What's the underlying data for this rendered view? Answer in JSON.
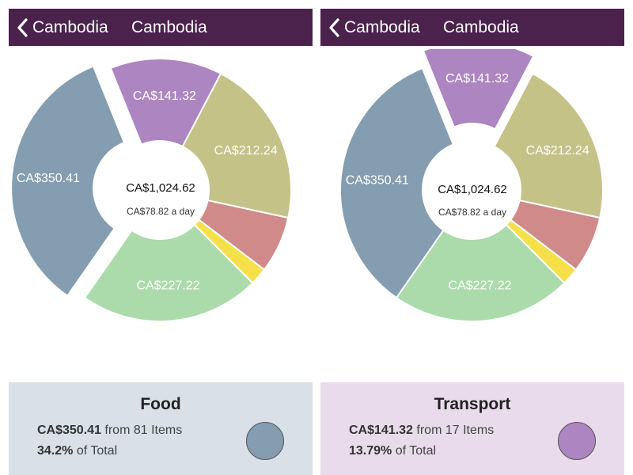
{
  "screens": [
    {
      "nav": {
        "back_label": "Cambodia",
        "title": "Cambodia"
      },
      "chart_data": {
        "type": "pie",
        "style": "donut",
        "center_total": "CA$1,024.62",
        "center_daily": "CA$78.82 a day",
        "exploded_index": 0,
        "slices": [
          {
            "label": "CA$350.41",
            "value": 350.41,
            "color": "#849db0"
          },
          {
            "label": "CA$141.32",
            "value": 141.32,
            "color": "#ad85c1"
          },
          {
            "label": "CA$212.24",
            "value": 212.24,
            "color": "#c4c287"
          },
          {
            "label": "",
            "value": 71.5,
            "color": "#d08a8a"
          },
          {
            "label": "",
            "value": 21.93,
            "color": "#f5e04a"
          },
          {
            "label": "CA$227.22",
            "value": 227.22,
            "color": "#abdbaa"
          }
        ]
      },
      "card": {
        "bg": "#d9e0e8",
        "title": "Food",
        "amount": "CA$350.41",
        "items": "from 81 Items",
        "percent": "34.2%",
        "of_total": "of Total",
        "color": "#849db0"
      }
    },
    {
      "nav": {
        "back_label": "Cambodia",
        "title": "Cambodia"
      },
      "chart_data": {
        "type": "pie",
        "style": "donut",
        "center_total": "CA$1,024.62",
        "center_daily": "CA$78.82 a day",
        "exploded_index": 1,
        "slices": [
          {
            "label": "CA$350.41",
            "value": 350.41,
            "color": "#849db0"
          },
          {
            "label": "CA$141.32",
            "value": 141.32,
            "color": "#ad85c1"
          },
          {
            "label": "CA$212.24",
            "value": 212.24,
            "color": "#c4c287"
          },
          {
            "label": "",
            "value": 71.5,
            "color": "#d08a8a"
          },
          {
            "label": "",
            "value": 21.93,
            "color": "#f5e04a"
          },
          {
            "label": "CA$227.22",
            "value": 227.22,
            "color": "#abdbaa"
          }
        ]
      },
      "card": {
        "bg": "#e9dbec",
        "title": "Transport",
        "amount": "CA$141.32",
        "items": "from 17 Items",
        "percent": "13.79%",
        "of_total": "of Total",
        "color": "#ad85c1"
      }
    }
  ]
}
